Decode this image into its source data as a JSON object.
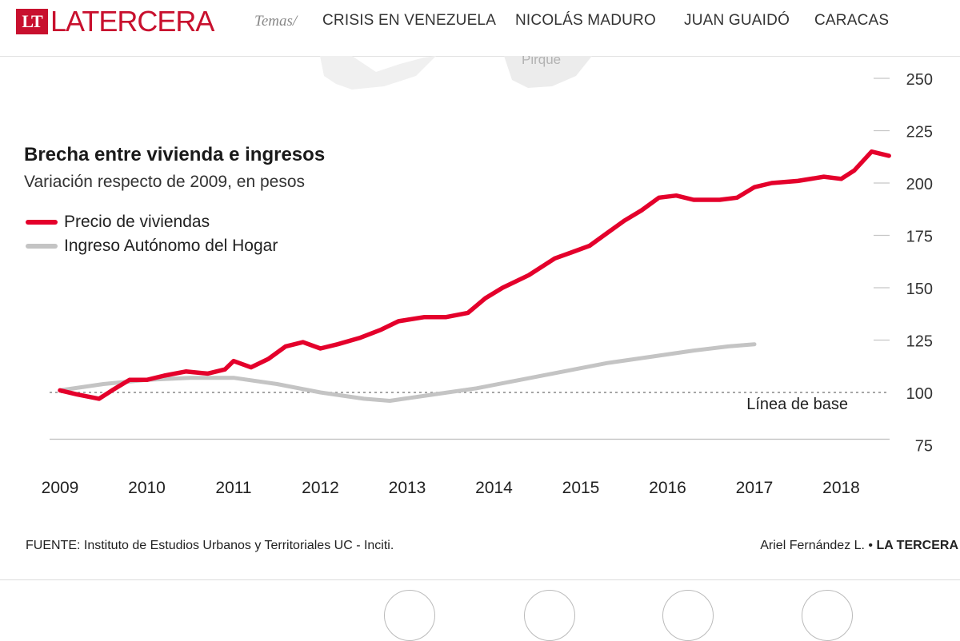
{
  "header": {
    "logo_mark": "LT",
    "logo_text": "LATERCERA",
    "temas_label": "Temas/",
    "nav": [
      "CRISIS EN VENEZUELA",
      "NICOLÁS MADURO",
      "JUAN GUAIDÓ",
      "CARACAS"
    ]
  },
  "map_label": "Pirque",
  "colors": {
    "brand": "#c8102e",
    "series_red": "#e4002b",
    "series_gray": "#c4c4c4"
  },
  "chart_data": {
    "type": "line",
    "title": "Brecha entre vivienda e ingresos",
    "subtitle": "Variación respecto de 2009, en pesos",
    "baseline_label": "Línea de base",
    "baseline": 100,
    "xlabel": "",
    "ylabel": "",
    "ylim": [
      75,
      250
    ],
    "yticks": [
      75,
      100,
      125,
      150,
      175,
      200,
      225,
      250
    ],
    "xticks": [
      2009,
      2010,
      2011,
      2012,
      2013,
      2014,
      2015,
      2016,
      2017,
      2018
    ],
    "series": [
      {
        "name": "Precio de viviendas",
        "color": "#e4002b",
        "x": [
          2009.0,
          2009.2,
          2009.45,
          2009.6,
          2009.8,
          2010.0,
          2010.2,
          2010.45,
          2010.7,
          2010.9,
          2011.0,
          2011.2,
          2011.4,
          2011.6,
          2011.8,
          2012.0,
          2012.2,
          2012.45,
          2012.7,
          2012.9,
          2013.2,
          2013.45,
          2013.7,
          2013.9,
          2014.1,
          2014.4,
          2014.7,
          2014.9,
          2015.1,
          2015.3,
          2015.5,
          2015.7,
          2015.9,
          2016.1,
          2016.3,
          2016.6,
          2016.8,
          2017.0,
          2017.2,
          2017.5,
          2017.8,
          2018.0,
          2018.15,
          2018.35,
          2018.55
        ],
        "values": [
          101,
          99,
          97,
          101,
          106,
          106,
          108,
          110,
          109,
          111,
          115,
          112,
          116,
          122,
          124,
          121,
          123,
          126,
          130,
          134,
          136,
          136,
          138,
          145,
          150,
          156,
          164,
          167,
          170,
          176,
          182,
          187,
          193,
          194,
          192,
          192,
          193,
          198,
          200,
          201,
          203,
          202,
          206,
          215,
          213
        ]
      },
      {
        "name": "Ingreso Autónomo del Hogar",
        "color": "#c4c4c4",
        "x": [
          2009.0,
          2009.5,
          2010.0,
          2010.5,
          2011.0,
          2011.5,
          2012.0,
          2012.5,
          2012.8,
          2013.3,
          2013.8,
          2014.3,
          2014.8,
          2015.3,
          2015.8,
          2016.3,
          2016.7,
          2017.0
        ],
        "values": [
          101,
          104,
          106,
          107,
          107,
          104,
          100,
          97,
          96,
          99,
          102,
          106,
          110,
          114,
          117,
          120,
          122,
          123
        ]
      }
    ]
  },
  "footer": {
    "source": "FUENTE: Instituto de Estudios Urbanos y Territoriales UC - Inciti.",
    "author": "Ariel Fernández L. •",
    "brand": "LA TERCERA"
  }
}
